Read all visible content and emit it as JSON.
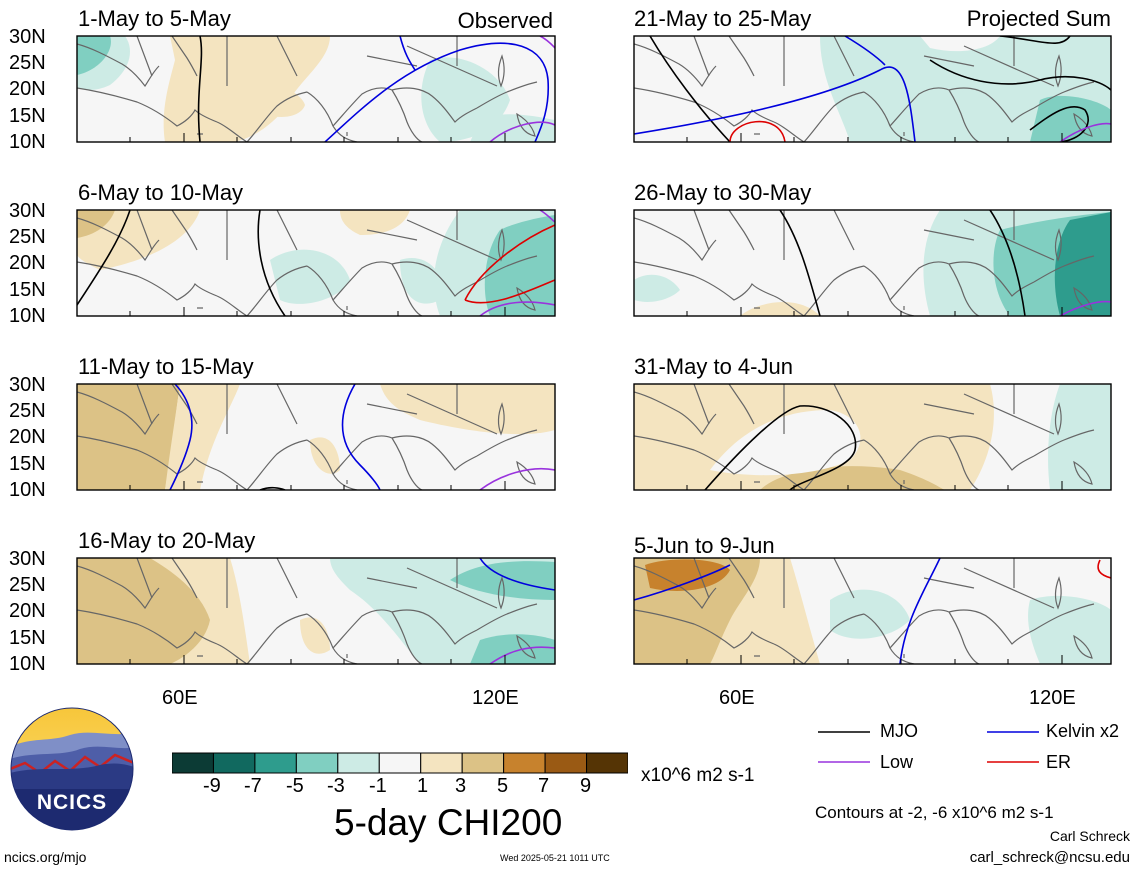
{
  "panels": [
    {
      "title": "1-May to 5-May",
      "tag": "Observed"
    },
    {
      "title": "21-May to 25-May",
      "tag": "Projected Sum"
    },
    {
      "title": "6-May to 10-May",
      "tag": ""
    },
    {
      "title": "26-May to 30-May",
      "tag": ""
    },
    {
      "title": "11-May to 15-May",
      "tag": ""
    },
    {
      "title": "31-May to 4-Jun",
      "tag": ""
    },
    {
      "title": "16-May to 20-May",
      "tag": ""
    },
    {
      "title": "5-Jun to 9-Jun",
      "tag": ""
    }
  ],
  "lat_labels": [
    "30N",
    "25N",
    "20N",
    "15N",
    "10N"
  ],
  "lon_labels": [
    "60E",
    "120E"
  ],
  "colorbar": {
    "ticks": [
      "-9",
      "-7",
      "-5",
      "-3",
      "-1",
      "1",
      "3",
      "5",
      "7",
      "9"
    ],
    "colors": [
      "#0c3b35",
      "#11695f",
      "#2e9c8d",
      "#80cfc1",
      "#cdebe5",
      "#f6f6f6",
      "#f4e4c0",
      "#dcc286",
      "#c7822d",
      "#9a5a14",
      "#553405"
    ],
    "units": "x10^6 m2 s-1",
    "title": "5-day CHI200"
  },
  "legend": {
    "mjo": {
      "label": "MJO",
      "color": "#000000"
    },
    "kelvin": {
      "label": "Kelvin x2",
      "color": "#0000dd"
    },
    "low": {
      "label": "Low",
      "color": "#9933dd"
    },
    "er": {
      "label": "ER",
      "color": "#dd0000"
    },
    "contours_note": "Contours at -2, -6 x10^6 m2 s-1"
  },
  "logo": {
    "text": "NCICS"
  },
  "footer": {
    "url": "ncics.org/mjo",
    "timestamp": "Wed 2025-05-21 1011 UTC",
    "author": "Carl Schreck",
    "email": "carl_schreck@ncsu.edu"
  }
}
